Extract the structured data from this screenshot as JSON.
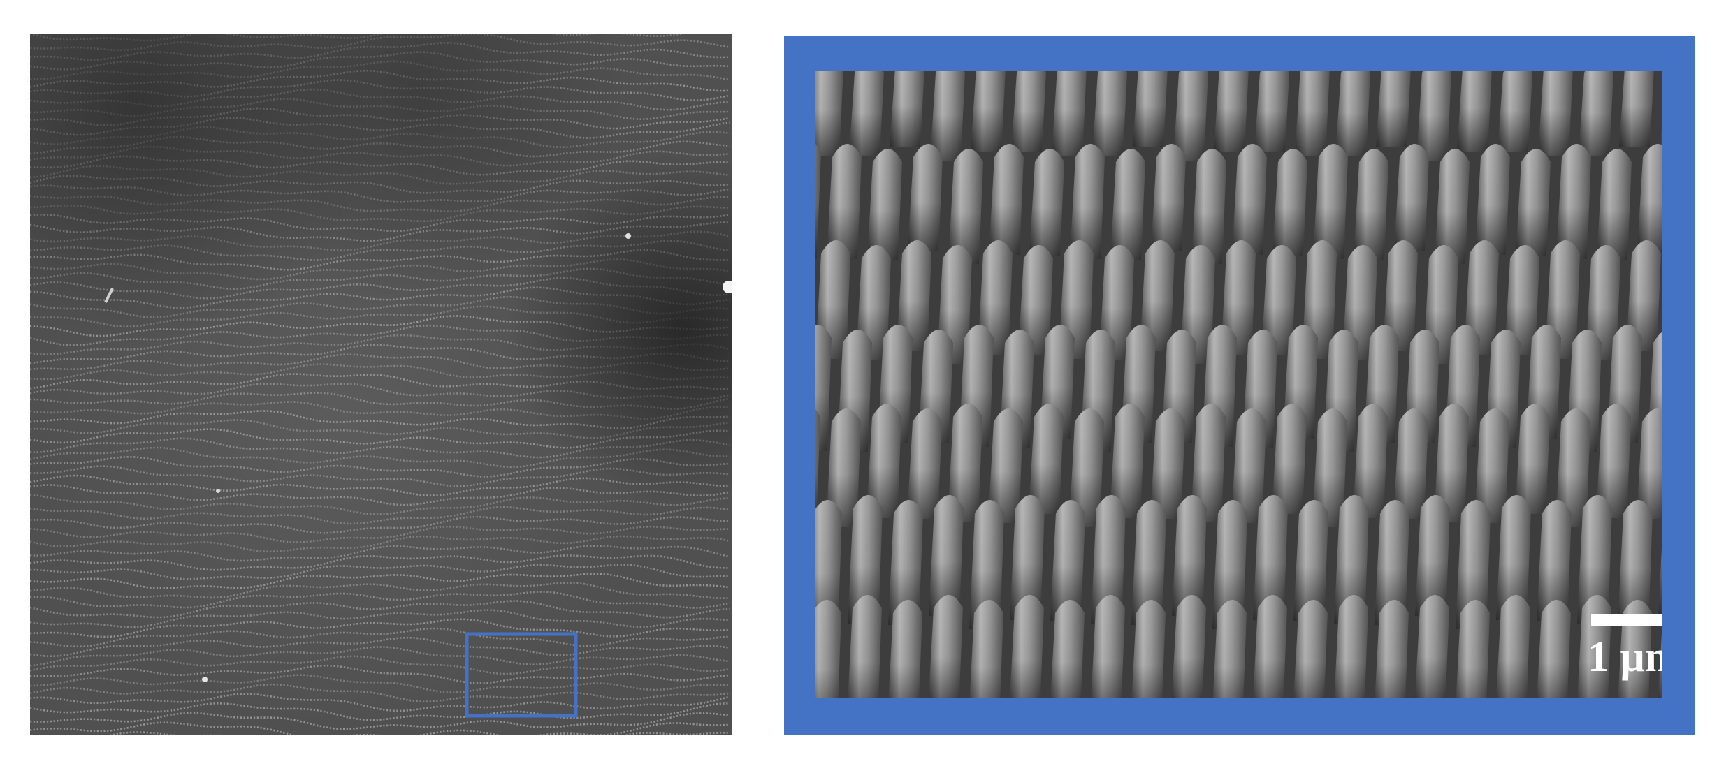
{
  "figure": {
    "left_panel": {
      "description_kind": "sem-overview",
      "highlight_color": "#4472c4"
    },
    "right_panel": {
      "description_kind": "sem-zoom",
      "frame_color": "#4472c4",
      "scale_bar": {
        "label": "1 μm"
      }
    }
  }
}
